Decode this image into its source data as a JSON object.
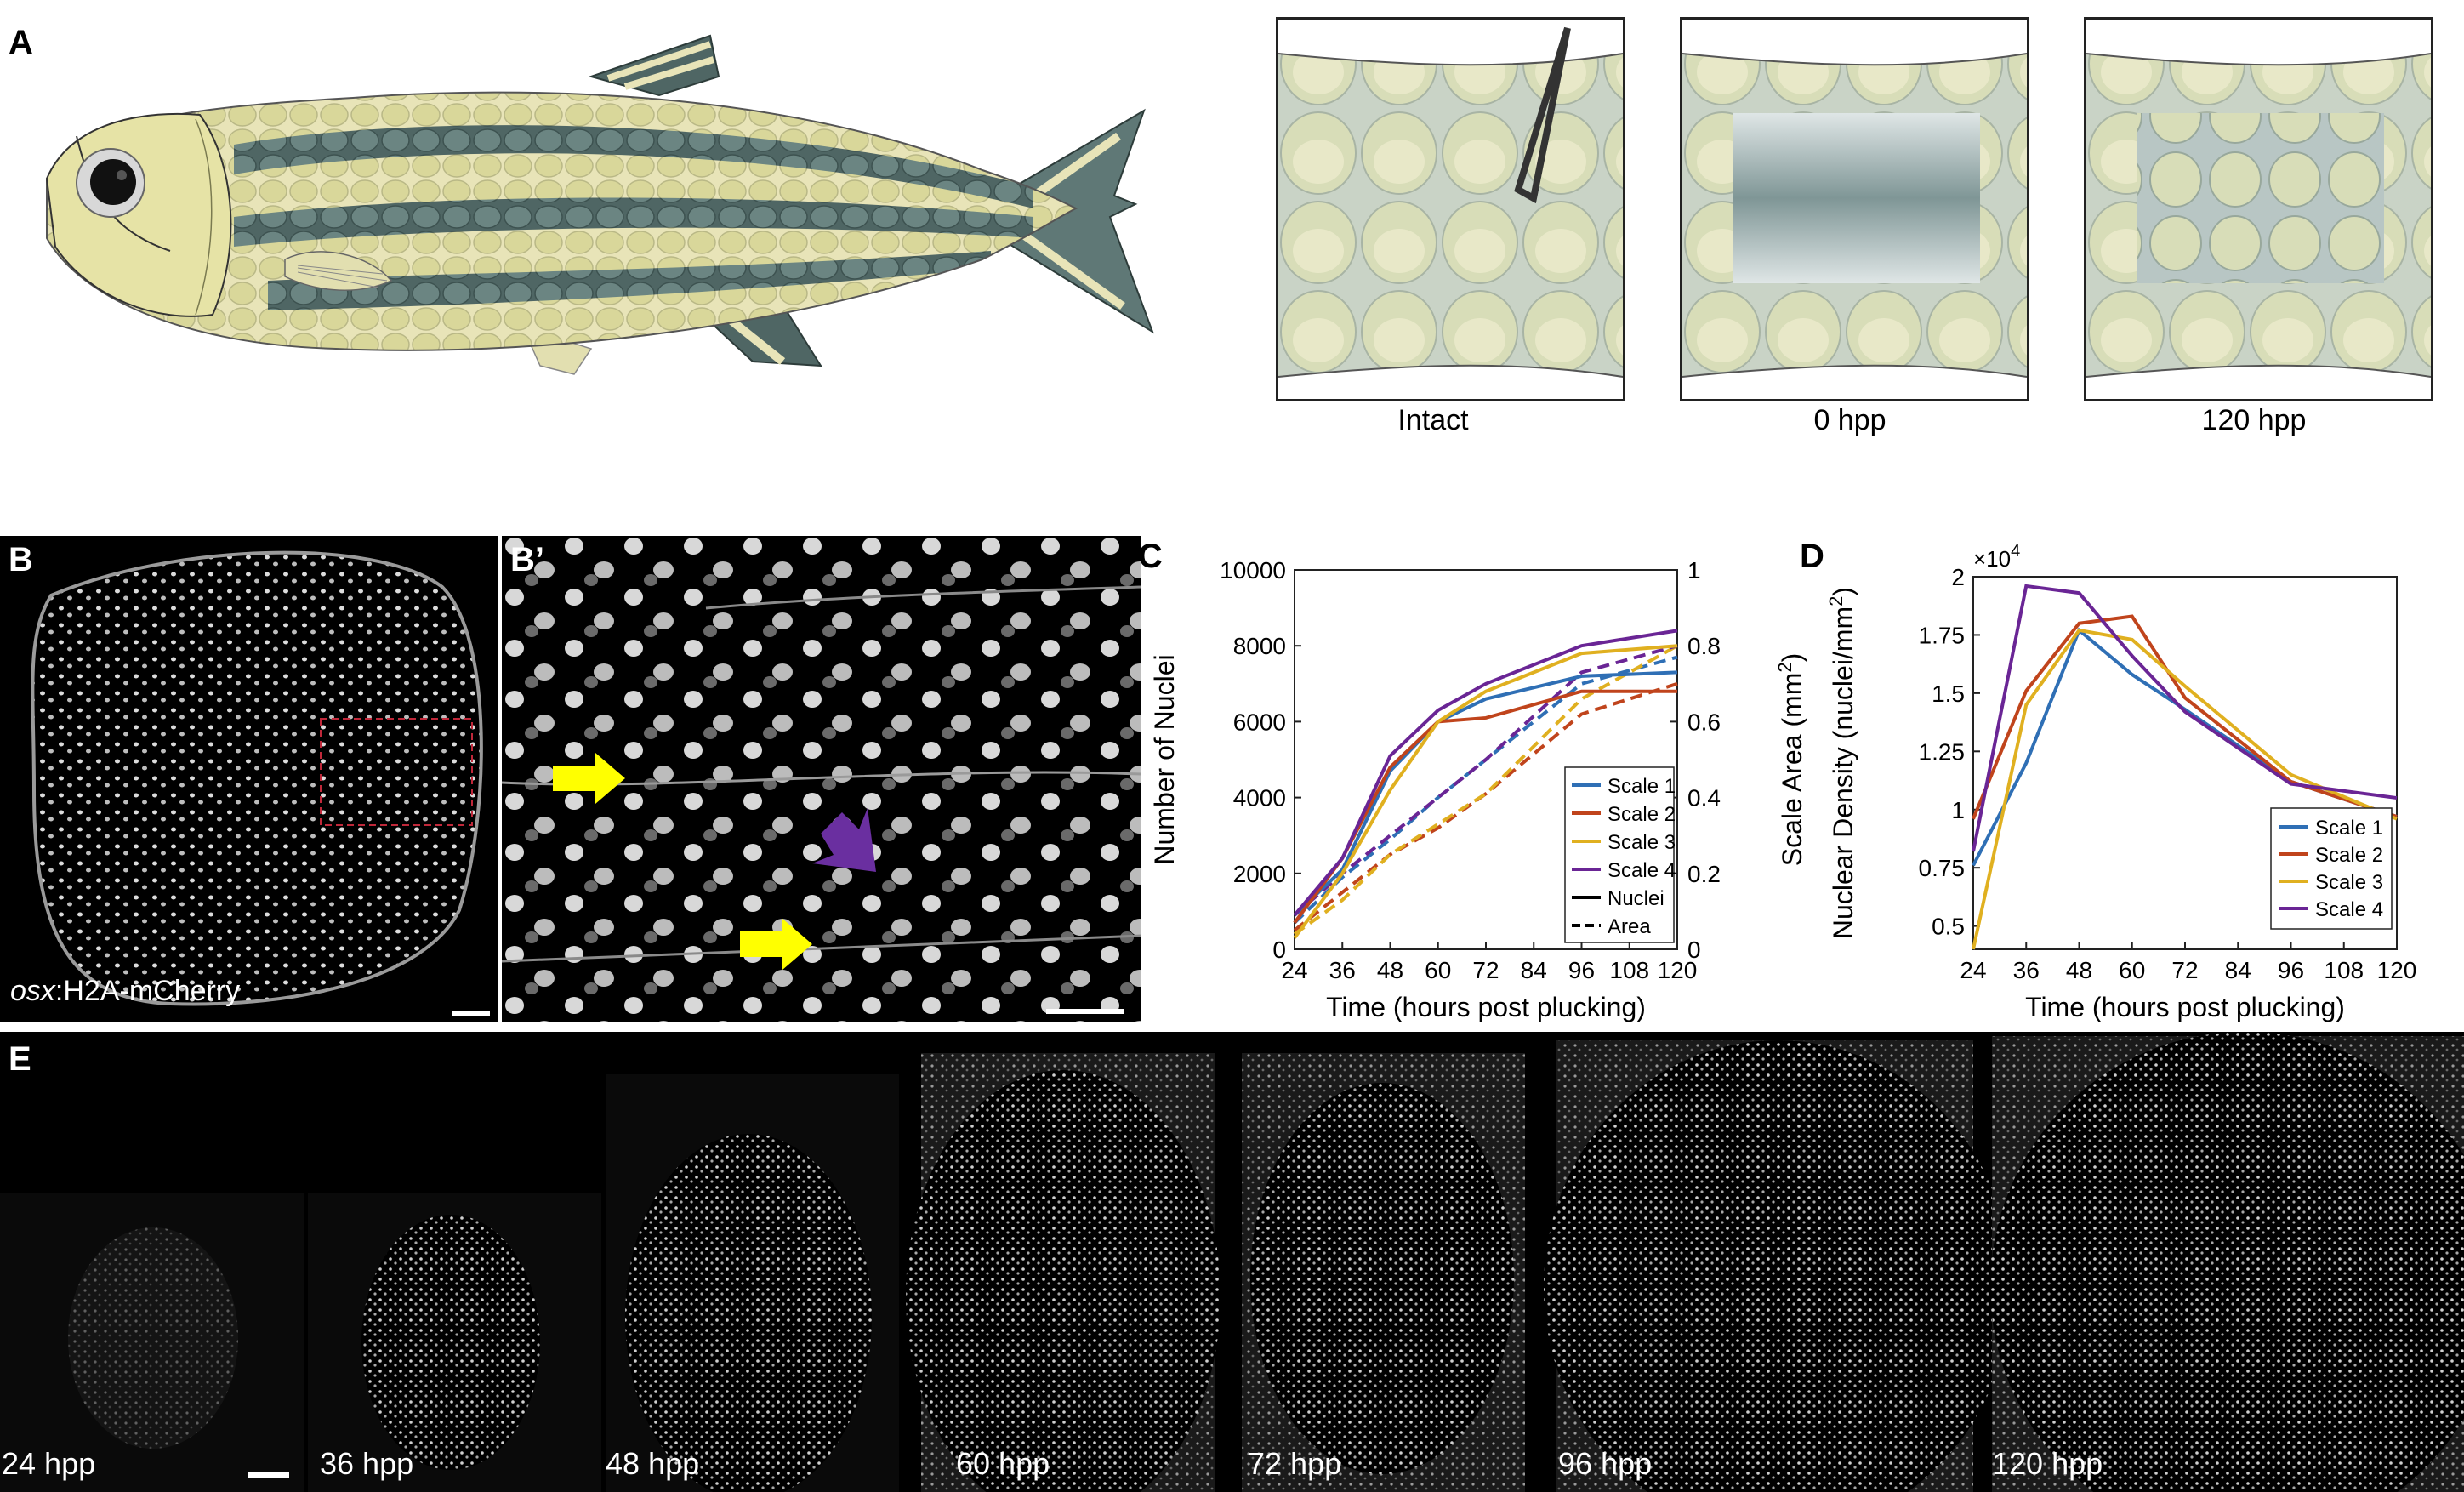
{
  "panels": {
    "a": {
      "label": "A",
      "captions": [
        "Intact",
        "0 hpp",
        "120 hpp"
      ]
    },
    "b": {
      "label": "B",
      "marker_prefix": "osx",
      "marker_suffix": ":H2A-mCherry"
    },
    "b_prime": {
      "label": "B’"
    },
    "c": {
      "label": "C"
    },
    "d": {
      "label": "D",
      "exponent_prefix": "×10",
      "exponent_power": "4"
    },
    "e": {
      "label": "E",
      "frames": [
        "24 hpp",
        "36 hpp",
        "48 hpp",
        "60 hpp",
        "72 hpp",
        "96 hpp",
        "120 hpp"
      ]
    }
  },
  "colors": {
    "scale1": "#2f6fb5",
    "scale2": "#c0441c",
    "scale3": "#e0b020",
    "scale4": "#6a2595",
    "yellow_arrow": "#ffff00",
    "purple_arrow": "#6a2fa0",
    "roi_box": "#c0283a"
  },
  "chart_data": [
    {
      "panel": "C",
      "type": "line",
      "xlabel": "Time (hours post plucking)",
      "ylabel": "Number of Nuclei",
      "y2label": "Scale Area (mm",
      "y2label_sup": "2",
      "y2label_end": ")",
      "xlim": [
        24,
        120
      ],
      "ylim": [
        0,
        10000
      ],
      "y2lim": [
        0,
        1
      ],
      "xticks": [
        "24",
        "36",
        "48",
        "60",
        "72",
        "84",
        "96",
        "108",
        "120"
      ],
      "yticks": [
        "0",
        "2000",
        "4000",
        "6000",
        "8000",
        "10000"
      ],
      "y2ticks": [
        "0",
        "0.2",
        "0.4",
        "0.6",
        "0.8",
        "1"
      ],
      "x": [
        24,
        36,
        48,
        60,
        72,
        96,
        120
      ],
      "nuclei_series": [
        {
          "name": "Scale 1",
          "values": [
            900,
            2100,
            4700,
            6000,
            6600,
            7200,
            7300
          ]
        },
        {
          "name": "Scale 2",
          "values": [
            700,
            2400,
            4800,
            6000,
            6100,
            6800,
            6800
          ]
        },
        {
          "name": "Scale 3",
          "values": [
            300,
            2000,
            4200,
            6000,
            6800,
            7800,
            8000
          ]
        },
        {
          "name": "Scale 4",
          "values": [
            900,
            2400,
            5100,
            6300,
            7000,
            8000,
            8400
          ]
        }
      ],
      "area_series": [
        {
          "name": "Scale 1",
          "values": [
            0.07,
            0.19,
            0.29,
            0.4,
            0.5,
            0.7,
            0.77
          ]
        },
        {
          "name": "Scale 2",
          "values": [
            0.05,
            0.15,
            0.25,
            0.32,
            0.41,
            0.62,
            0.7
          ]
        },
        {
          "name": "Scale 3",
          "values": [
            0.04,
            0.13,
            0.25,
            0.33,
            0.41,
            0.66,
            0.8
          ]
        },
        {
          "name": "Scale 4",
          "values": [
            0.09,
            0.2,
            0.3,
            0.4,
            0.5,
            0.73,
            0.8
          ]
        }
      ],
      "legend": [
        "Scale 1",
        "Scale 2",
        "Scale 3",
        "Scale 4",
        "Nuclei",
        "Area"
      ],
      "legend_position": "bottom-right"
    },
    {
      "panel": "D",
      "type": "line",
      "xlabel": "Time (hours post plucking)",
      "ylabel": "Nuclear Density (nuclei/mm",
      "ylabel_sup": "2",
      "ylabel_end": ")",
      "xlim": [
        24,
        120
      ],
      "ylim": [
        0.4,
        2.0
      ],
      "y_multiplier": "1e4",
      "xticks": [
        "24",
        "36",
        "48",
        "60",
        "72",
        "84",
        "96",
        "108",
        "120"
      ],
      "yticks": [
        "0.5",
        "0.75",
        "1",
        "1.25",
        "1.5",
        "1.75",
        "2"
      ],
      "x": [
        24,
        36,
        48,
        60,
        72,
        96,
        120
      ],
      "series": [
        {
          "name": "Scale 1",
          "values": [
            0.76,
            1.2,
            1.77,
            1.58,
            1.43,
            1.12,
            0.97
          ]
        },
        {
          "name": "Scale 2",
          "values": [
            0.96,
            1.51,
            1.8,
            1.83,
            1.48,
            1.12,
            0.97
          ]
        },
        {
          "name": "Scale 3",
          "values": [
            0.4,
            1.45,
            1.77,
            1.73,
            1.53,
            1.15,
            0.96
          ]
        },
        {
          "name": "Scale 4",
          "values": [
            0.82,
            1.96,
            1.93,
            1.66,
            1.42,
            1.11,
            1.05
          ]
        }
      ],
      "legend": [
        "Scale 1",
        "Scale 2",
        "Scale 3",
        "Scale 4"
      ],
      "legend_position": "bottom-right"
    }
  ]
}
